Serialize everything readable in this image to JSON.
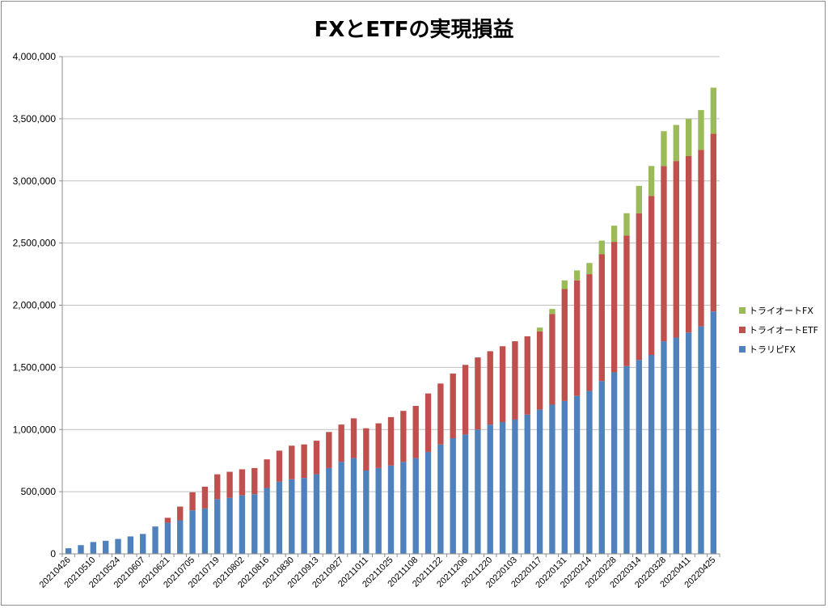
{
  "chart_data": {
    "type": "bar",
    "stacked": true,
    "title": "FXとETFの実現損益",
    "xlabel": "",
    "ylabel": "",
    "ylim": [
      0,
      4000000
    ],
    "yticks": [
      0,
      500000,
      1000000,
      1500000,
      2000000,
      2500000,
      3000000,
      3500000,
      4000000
    ],
    "ytick_labels": [
      "0",
      "500,000",
      "1,000,000",
      "1,500,000",
      "2,000,000",
      "2,500,000",
      "3,000,000",
      "3,500,000",
      "4,000,000"
    ],
    "grid": true,
    "legend_position": "right",
    "categories": [
      "20210426",
      "20210503",
      "20210510",
      "20210517",
      "20210524",
      "20210531",
      "20210607",
      "20210614",
      "20210621",
      "20210628",
      "20210705",
      "20210712",
      "20210719",
      "20210726",
      "20210802",
      "20210809",
      "20210816",
      "20210823",
      "20210830",
      "20210906",
      "20210913",
      "20210920",
      "20210927",
      "20211004",
      "20211011",
      "20211018",
      "20211025",
      "20211101",
      "20211108",
      "20211115",
      "20211122",
      "20211129",
      "20211206",
      "20211213",
      "20211220",
      "20211227",
      "20220103",
      "20220110",
      "20220117",
      "20220124",
      "20220131",
      "20220207",
      "20220214",
      "20220221",
      "20220228",
      "20220307",
      "20220314",
      "20220321",
      "20220328",
      "20220404",
      "20220411",
      "20220418",
      "20220425"
    ],
    "xtick_labels": [
      "20210426",
      "20210510",
      "20210524",
      "20210607",
      "20210621",
      "20210705",
      "20210719",
      "20210802",
      "20210816",
      "20210830",
      "20210913",
      "20210927",
      "20211011",
      "20211025",
      "20211108",
      "20211122",
      "20211206",
      "20211220",
      "20220103",
      "20220117",
      "20220131",
      "20220214",
      "20220228",
      "20220314",
      "20220328",
      "20220411",
      "20220425"
    ],
    "series": [
      {
        "name": "トラリピFX",
        "color": "#4f81bd",
        "values": [
          45000,
          70000,
          95000,
          105000,
          120000,
          140000,
          160000,
          220000,
          250000,
          270000,
          350000,
          365000,
          440000,
          450000,
          470000,
          480000,
          530000,
          580000,
          600000,
          610000,
          640000,
          690000,
          740000,
          770000,
          670000,
          690000,
          710000,
          740000,
          770000,
          820000,
          880000,
          930000,
          960000,
          1000000,
          1040000,
          1060000,
          1080000,
          1120000,
          1160000,
          1200000,
          1230000,
          1270000,
          1310000,
          1390000,
          1460000,
          1510000,
          1560000,
          1600000,
          1710000,
          1740000,
          1780000,
          1830000,
          1950000
        ]
      },
      {
        "name": "トライオートETF",
        "color": "#c0504d",
        "values": [
          0,
          0,
          0,
          0,
          0,
          0,
          0,
          0,
          40000,
          110000,
          145000,
          175000,
          200000,
          210000,
          210000,
          210000,
          230000,
          250000,
          270000,
          270000,
          270000,
          290000,
          300000,
          320000,
          340000,
          360000,
          390000,
          410000,
          420000,
          470000,
          490000,
          520000,
          560000,
          580000,
          590000,
          610000,
          630000,
          630000,
          630000,
          730000,
          900000,
          930000,
          940000,
          1020000,
          1050000,
          1050000,
          1180000,
          1280000,
          1410000,
          1420000,
          1420000,
          1420000,
          1430000
        ]
      },
      {
        "name": "トライオートFX",
        "color": "#9bbb59",
        "values": [
          0,
          0,
          0,
          0,
          0,
          0,
          0,
          0,
          0,
          0,
          0,
          0,
          0,
          0,
          0,
          0,
          0,
          0,
          0,
          0,
          0,
          0,
          0,
          0,
          0,
          0,
          0,
          0,
          0,
          0,
          0,
          0,
          0,
          0,
          0,
          0,
          0,
          0,
          30000,
          40000,
          70000,
          80000,
          90000,
          110000,
          130000,
          180000,
          220000,
          240000,
          280000,
          290000,
          300000,
          320000,
          370000
        ]
      }
    ]
  }
}
